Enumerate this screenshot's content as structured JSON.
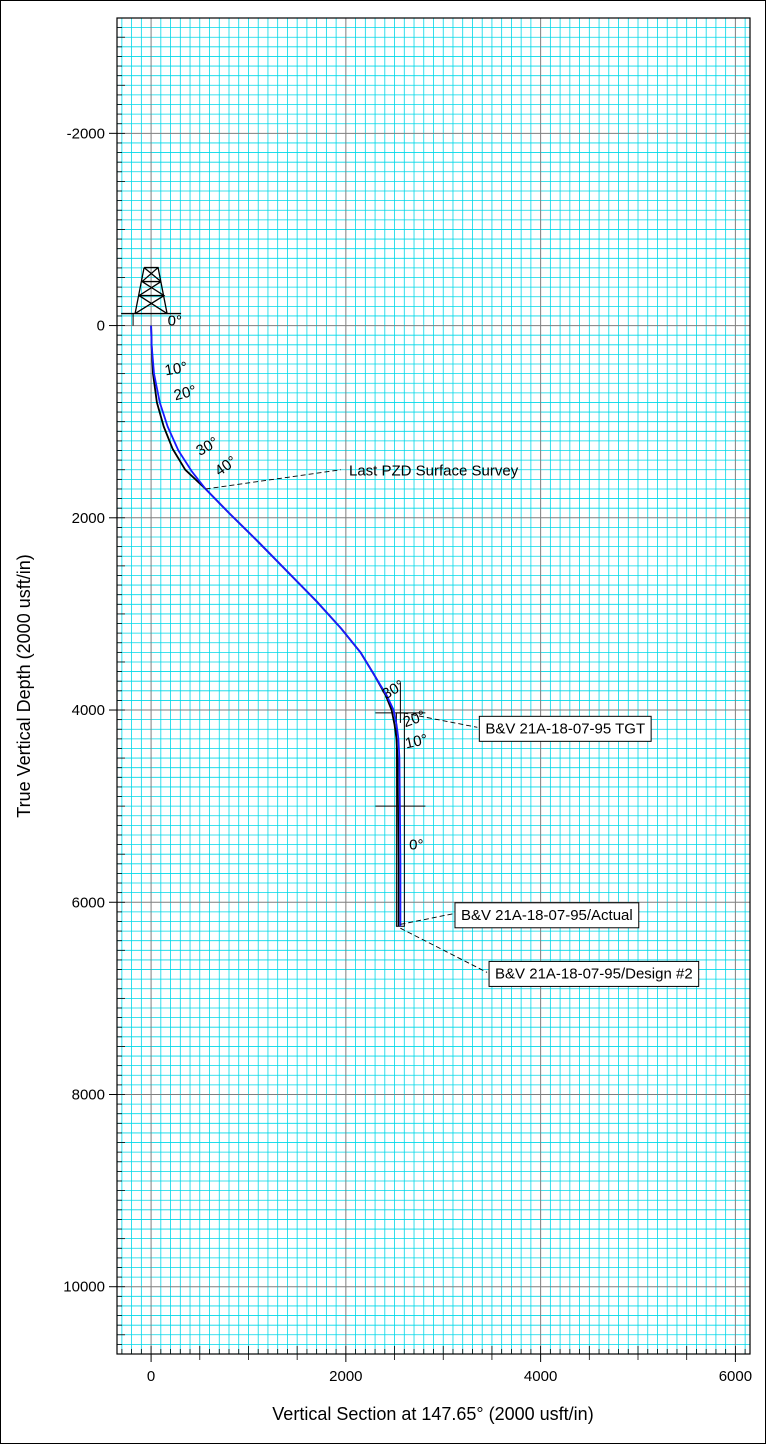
{
  "chart_data": {
    "type": "line",
    "title": "",
    "xlabel": "Vertical Section at 147.65° (2000 usft/in)",
    "ylabel": "True Vertical Depth (2000 usft/in)",
    "xlim": [
      -350,
      6150
    ],
    "ylim": [
      -3200,
      10700
    ],
    "y_inverted": true,
    "x_ticks": [
      0,
      2000,
      4000,
      6000
    ],
    "x_tick_labels": [
      "0",
      "2000",
      "4000",
      "6000"
    ],
    "y_ticks": [
      -2000,
      0,
      2000,
      4000,
      6000,
      8000,
      10000
    ],
    "y_tick_labels": [
      "-2000",
      "0",
      "2000",
      "4000",
      "6000",
      "8000",
      "10000"
    ],
    "grid": true,
    "minor_grid_step": 100,
    "major_grid_step": 2000,
    "colors": {
      "frame": "#000000",
      "minor_grid": "#00d8e8",
      "major_grid": "#7f7f7f",
      "actual": "#1a1aff",
      "design": "#000000"
    },
    "series": [
      {
        "name": "B&V 21A-18-07-95/Actual",
        "color": "#1a1aff",
        "x": [
          0,
          5,
          30,
          90,
          170,
          280,
          420,
          560,
          800,
          1100,
          1400,
          1700,
          1950,
          2150,
          2300,
          2420,
          2490,
          2520,
          2540,
          2550,
          2555,
          2560,
          2560
        ],
        "y": [
          0,
          200,
          500,
          800,
          1050,
          1300,
          1520,
          1700,
          1950,
          2250,
          2560,
          2870,
          3150,
          3400,
          3650,
          3850,
          4000,
          4150,
          4300,
          4500,
          5000,
          5600,
          6250
        ]
      },
      {
        "name": "B&V 21A-18-07-95/Design #2",
        "color": "#000000",
        "x": [
          0,
          5,
          20,
          60,
          130,
          220,
          350,
          560,
          800,
          1100,
          1400,
          1700,
          1950,
          2150,
          2300,
          2410,
          2470,
          2500,
          2520,
          2530,
          2535,
          2540,
          2540
        ],
        "y": [
          0,
          200,
          500,
          800,
          1050,
          1280,
          1500,
          1700,
          1950,
          2250,
          2560,
          2870,
          3150,
          3400,
          3650,
          3850,
          4000,
          4150,
          4300,
          4500,
          5000,
          5600,
          6250
        ]
      }
    ],
    "inclination_labels": [
      {
        "text": "0°",
        "x": 170,
        "y": 0,
        "rotate": 0
      },
      {
        "text": "10°",
        "x": 150,
        "y": 520,
        "rotate": -10
      },
      {
        "text": "20°",
        "x": 250,
        "y": 780,
        "rotate": -15
      },
      {
        "text": "30°",
        "x": 500,
        "y": 1360,
        "rotate": -30
      },
      {
        "text": "40°",
        "x": 700,
        "y": 1570,
        "rotate": -35
      },
      {
        "text": "30°",
        "x": 2410,
        "y": 3890,
        "rotate": -30
      },
      {
        "text": "20°",
        "x": 2610,
        "y": 4180,
        "rotate": -20
      },
      {
        "text": "10°",
        "x": 2620,
        "y": 4400,
        "rotate": -12
      },
      {
        "text": "0°",
        "x": 2650,
        "y": 5450,
        "rotate": 0
      }
    ],
    "annotations": [
      {
        "text": "Last PZD Surface Survey",
        "anchor_x": 560,
        "anchor_y": 1700,
        "end_x": 1950,
        "end_y": 1500,
        "box": false
      },
      {
        "text": "B&V 21A-18-07-95 TGT",
        "anchor_x": 2590,
        "anchor_y": 4030,
        "end_x": 3350,
        "end_y": 4180,
        "box": true
      },
      {
        "text": "B&V 21A-18-07-95/Actual",
        "anchor_x": 2560,
        "anchor_y": 6230,
        "end_x": 3100,
        "end_y": 6120,
        "box": true
      },
      {
        "text": "B&V 21A-18-07-95/Design #2",
        "anchor_x": 2560,
        "anchor_y": 6270,
        "end_x": 3450,
        "end_y": 6730,
        "box": true
      }
    ],
    "target": {
      "x": 2560,
      "y_top": 4030,
      "y_bottom": 6250,
      "cross_y": 5000
    },
    "rig_marker": {
      "x": 0,
      "y": 0
    }
  }
}
